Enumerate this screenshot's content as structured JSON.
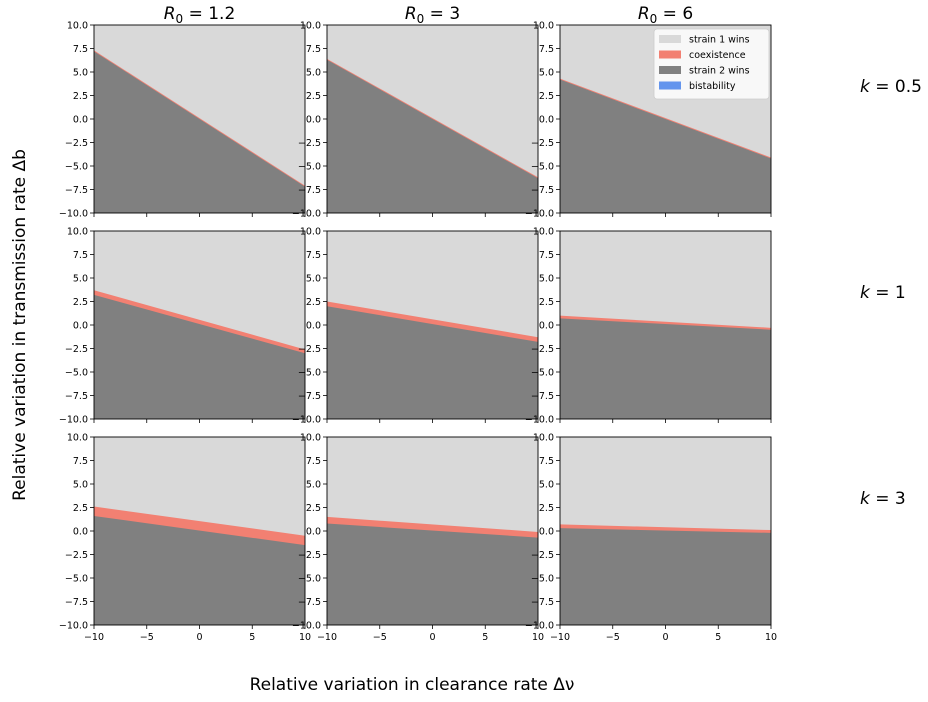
{
  "figure": {
    "xlabel": "Relative variation in clearance rate Δν",
    "ylabel": "Relative variation in transmission rate Δb"
  },
  "columns": [
    {
      "prefix": "R",
      "sub": "0",
      "suffix": " =  1.2"
    },
    {
      "prefix": "R",
      "sub": "0",
      "suffix": " =  3"
    },
    {
      "prefix": "R",
      "sub": "0",
      "suffix": " =  6"
    }
  ],
  "rows": [
    {
      "prefix": "k",
      "suffix": " = 0.5"
    },
    {
      "prefix": "k",
      "suffix": " = 1"
    },
    {
      "prefix": "k",
      "suffix": " = 3"
    }
  ],
  "colors": {
    "strain1": "#d9d9d9",
    "coexistence": "#f28072",
    "strain2": "#808080",
    "bistability": "#6495ed"
  },
  "chart_data": {
    "type": "area",
    "layout": "3x3 grid of panels (rows: k, columns: R0)",
    "xlim": [
      -10,
      10
    ],
    "ylim": [
      -10,
      10
    ],
    "x_ticks": [
      "−10",
      "−5",
      "0",
      "5",
      "10"
    ],
    "y_ticks": [
      "10.0",
      "7.5",
      "5.0",
      "2.5",
      "0.0",
      "−2.5",
      "−5.0",
      "−7.5",
      "−10.0"
    ],
    "legend": {
      "placement": "upper-right of top-right panel",
      "entries": [
        {
          "label": "strain 1 wins",
          "color": "#d9d9d9"
        },
        {
          "label": "coexistence",
          "color": "#f28072"
        },
        {
          "label": "strain 2 wins",
          "color": "#808080"
        },
        {
          "label": "bistability",
          "color": "#6495ed"
        }
      ]
    },
    "panels": [
      {
        "row": 0,
        "col": 0,
        "lower_boundary": [
          7.2,
          -7.2
        ],
        "upper_boundary": [
          7.3,
          -7.1
        ]
      },
      {
        "row": 0,
        "col": 1,
        "lower_boundary": [
          6.3,
          -6.3
        ],
        "upper_boundary": [
          6.4,
          -6.2
        ]
      },
      {
        "row": 0,
        "col": 2,
        "lower_boundary": [
          4.2,
          -4.2
        ],
        "upper_boundary": [
          4.3,
          -4.1
        ]
      },
      {
        "row": 1,
        "col": 0,
        "lower_boundary": [
          3.2,
          -3.0
        ],
        "upper_boundary": [
          3.7,
          -2.6
        ]
      },
      {
        "row": 1,
        "col": 1,
        "lower_boundary": [
          2.0,
          -1.8
        ],
        "upper_boundary": [
          2.5,
          -1.3
        ]
      },
      {
        "row": 1,
        "col": 2,
        "lower_boundary": [
          0.7,
          -0.5
        ],
        "upper_boundary": [
          1.0,
          -0.3
        ]
      },
      {
        "row": 2,
        "col": 0,
        "lower_boundary": [
          1.6,
          -1.5
        ],
        "upper_boundary": [
          2.6,
          -0.5
        ]
      },
      {
        "row": 2,
        "col": 1,
        "lower_boundary": [
          0.8,
          -0.7
        ],
        "upper_boundary": [
          1.5,
          -0.1
        ]
      },
      {
        "row": 2,
        "col": 2,
        "lower_boundary": [
          0.3,
          -0.2
        ],
        "upper_boundary": [
          0.7,
          0.1
        ]
      }
    ]
  }
}
